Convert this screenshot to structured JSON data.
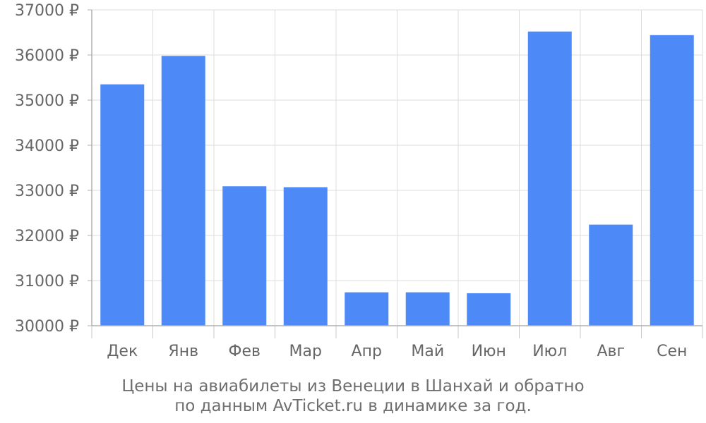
{
  "chart_data": {
    "type": "bar",
    "categories": [
      "Дек",
      "Янв",
      "Фев",
      "Мар",
      "Апр",
      "Май",
      "Июн",
      "Июл",
      "Авг",
      "Сен"
    ],
    "values": [
      35350,
      35980,
      33090,
      33070,
      30740,
      30740,
      30720,
      36520,
      32240,
      36440
    ],
    "ylim": [
      30000,
      37000
    ],
    "yticks": [
      30000,
      31000,
      32000,
      33000,
      34000,
      35000,
      36000,
      37000
    ],
    "ytick_suffix": " ₽",
    "grid": true,
    "bar_color": "#4d8af8"
  },
  "caption": {
    "line1": "Цены на авиабилеты из Венеции в Шанхай и обратно",
    "line2": "по данным AvTicket.ru в динамике за год."
  }
}
